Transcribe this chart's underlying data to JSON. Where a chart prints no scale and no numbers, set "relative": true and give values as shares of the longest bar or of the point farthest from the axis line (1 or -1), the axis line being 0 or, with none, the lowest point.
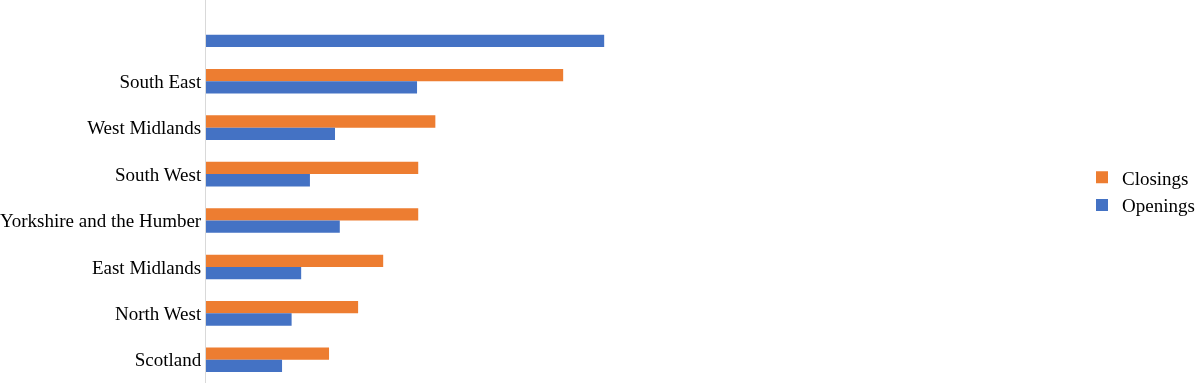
{
  "chart_data": {
    "type": "bar",
    "orientation": "horizontal",
    "relative": true,
    "legend": "right",
    "categories": [
      null,
      "South East",
      "West Midlands",
      "South West",
      "Yorkshire and the Humber",
      "East Midlands",
      "North West",
      "Scotland"
    ],
    "series": [
      {
        "name": "Closings",
        "color": "#ed7d31",
        "values": [
          null,
          0.897,
          0.576,
          0.533,
          0.533,
          0.445,
          0.382,
          0.309
        ]
      },
      {
        "name": "Openings",
        "color": "#4472c4",
        "values": [
          1.0,
          0.53,
          0.324,
          0.261,
          0.336,
          0.239,
          0.215,
          0.191
        ]
      }
    ]
  }
}
